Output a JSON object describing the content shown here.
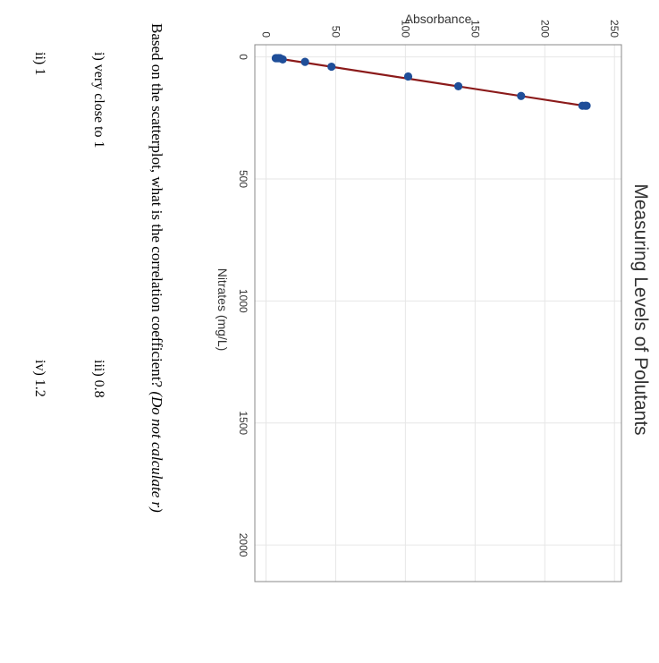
{
  "chart_data": {
    "type": "scatter",
    "title": "Measuring Levels of Polutants",
    "xlabel": "Nitrates (mg/L)",
    "ylabel": "Absorbance",
    "xlim": [
      -50,
      2150
    ],
    "ylim": [
      -8,
      255
    ],
    "xticks": [
      "0",
      "500",
      "1000",
      "1500",
      "2000"
    ],
    "yticks": [
      "0",
      "50",
      "100",
      "150",
      "200",
      "250"
    ],
    "x": [
      5,
      5,
      5,
      5,
      10,
      20,
      40,
      80,
      120,
      160,
      200,
      200,
      200
    ],
    "y": [
      7,
      8,
      9,
      10,
      12,
      28,
      47,
      102,
      138,
      183,
      227,
      229,
      230
    ],
    "trendline": {
      "x": [
        5,
        200
      ],
      "y": [
        7,
        228
      ]
    },
    "grid": true,
    "colors": {
      "points": "#1f4e99",
      "trendline": "#8b1a1a",
      "grid": "#e6e6e6",
      "frame": "#888888"
    }
  },
  "question": {
    "text": "Based on the scatterplot, what is the correlation coefficient?",
    "note": "(Do not calculate r)"
  },
  "options": {
    "i": "i)   very close to 1",
    "ii": "ii)  1",
    "iii": "iii) 0.8",
    "iv": "iv) 1.2"
  }
}
